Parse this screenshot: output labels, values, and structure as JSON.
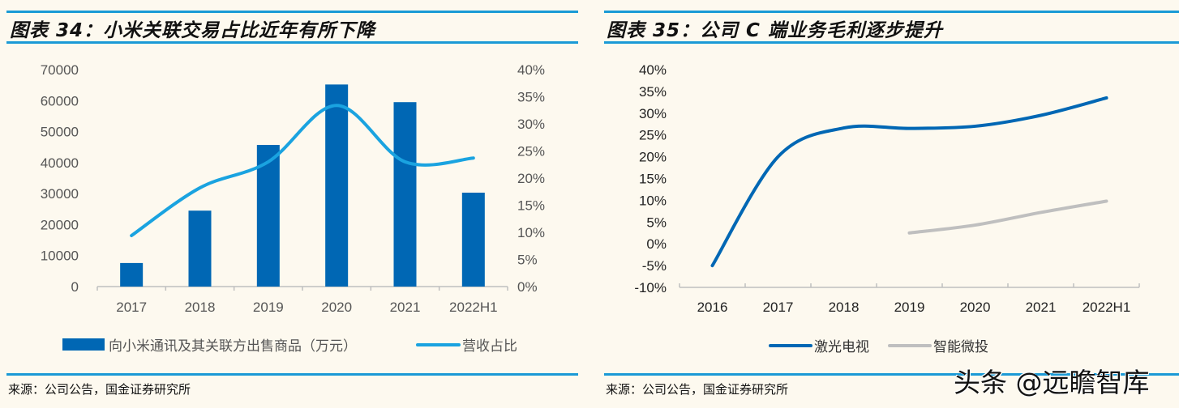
{
  "chart_data": [
    {
      "type": "bar+line",
      "title": "图表 34：小米关联交易占比近年有所下降",
      "categories": [
        "2017",
        "2018",
        "2019",
        "2020",
        "2021",
        "2022H1"
      ],
      "y_left": {
        "ylim": [
          0,
          70000
        ],
        "ticks": [
          "0",
          "10000",
          "20000",
          "30000",
          "40000",
          "50000",
          "60000",
          "70000"
        ]
      },
      "y_right": {
        "ylim": [
          0,
          40
        ],
        "ticks": [
          "0%",
          "5%",
          "10%",
          "15%",
          "20%",
          "25%",
          "30%",
          "35%",
          "40%"
        ]
      },
      "series": [
        {
          "name": "向小米通讯及其关联方出售商品（万元）",
          "type": "bar",
          "axis": "left",
          "color": "#0067b4",
          "values": [
            7600,
            24500,
            45700,
            65200,
            59500,
            30300
          ]
        },
        {
          "name": "营收占比",
          "type": "line",
          "axis": "right",
          "color": "#1aa3e0",
          "values": [
            9.4,
            18.2,
            23.0,
            33.4,
            23.0,
            23.7
          ]
        }
      ],
      "legend": "bottom",
      "source": "来源：公司公告，国金证券研究所"
    },
    {
      "type": "line",
      "title": "图表 35：公司 C 端业务毛利逐步提升",
      "categories": [
        "2016",
        "2017",
        "2018",
        "2019",
        "2020",
        "2021",
        "2022H1"
      ],
      "ylim": [
        -10,
        40
      ],
      "yticks": [
        "-10%",
        "-5%",
        "0%",
        "5%",
        "10%",
        "15%",
        "20%",
        "25%",
        "30%",
        "35%",
        "40%"
      ],
      "series": [
        {
          "name": "激光电视",
          "color": "#0067b4",
          "values": [
            -5,
            20,
            26.6,
            26.5,
            27,
            29.5,
            33.5
          ]
        },
        {
          "name": "智能微投",
          "color": "#bfbfbf",
          "values": [
            null,
            null,
            null,
            2.5,
            4.3,
            7.2,
            9.8
          ]
        }
      ],
      "legend": "bottom",
      "source": "来源：公司公告，国金证券研究所"
    }
  ],
  "watermark": "头条 @远瞻智库"
}
